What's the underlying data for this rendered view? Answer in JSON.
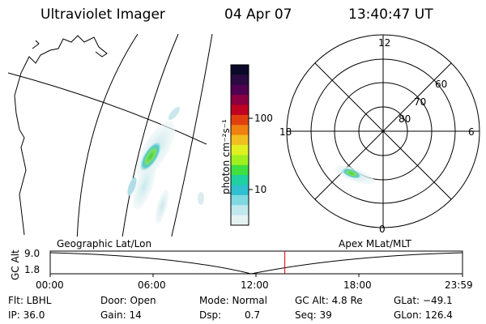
{
  "header": {
    "title": "Ultraviolet Imager",
    "date": "04 Apr 07",
    "time": "13:40:47 UT"
  },
  "colorbar": {
    "label": "photon cm⁻²s⁻¹",
    "ticks": [
      "100",
      "10"
    ],
    "colors": [
      "#0a0a28",
      "#2a0a40",
      "#500050",
      "#8a0040",
      "#c00020",
      "#e04010",
      "#f08010",
      "#f0c020",
      "#e0f020",
      "#a0f020",
      "#40e040",
      "#20d0a0",
      "#30c0d0",
      "#80d8e0",
      "#c0e8ec",
      "#e4f2f2"
    ]
  },
  "polar": {
    "labels": {
      "top": "12",
      "bottom": "0",
      "left": "18",
      "right": "6"
    },
    "rings": [
      "60",
      "70",
      "80"
    ]
  },
  "timeline": {
    "axis_label": "GC Alt",
    "left_label": "Geographic Lat/Lon",
    "right_label": "Apex MLat/MLT",
    "y_top": "9.0",
    "y_bottom": "1.8",
    "x_ticks": [
      "00:00",
      "06:00",
      "12:00",
      "18:00",
      "23:59"
    ],
    "current_time_fraction": 0.569,
    "marker_color": "#dd0000"
  },
  "info": {
    "flt": "Flt: LBHL",
    "ip": "IP: 36.0",
    "door": "Door: Open",
    "gain": "Gain: 14",
    "mode": "Mode: Normal",
    "dsp_label": "Dsp:",
    "dsp_value": "0.7",
    "gc_alt": "GC Alt: 4.8 Re",
    "seq": "Seq: 39",
    "glat": "GLat: −49.1",
    "glon": "GLon: 126.4"
  }
}
